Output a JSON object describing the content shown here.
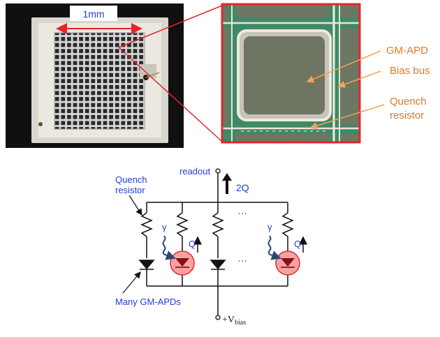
{
  "photo": {
    "scale_label": "1mm"
  },
  "zoom_labels": {
    "gm_apd": "GM-APD",
    "bias_bus": "Bias bus",
    "quench_line1": "Quench",
    "quench_line2": "resistor"
  },
  "circuit": {
    "quench_line1": "Quench",
    "quench_line2": "resistor",
    "readout": "readout",
    "two_q": "2Q",
    "ellipsis_top": "…",
    "ellipsis_mid": "…",
    "gamma1": "γ",
    "gamma2": "γ",
    "q1": "Q",
    "q2": "Q",
    "many_apds": "Many GM-APDs",
    "vbias_prefix": "+V",
    "vbias_sub": "bias"
  },
  "colors": {
    "label_blue": "#1f3fd6",
    "label_orange": "#e07a2c",
    "highlight_red": "#e8242a",
    "diode_fill_pink": "#f4a3a3"
  }
}
